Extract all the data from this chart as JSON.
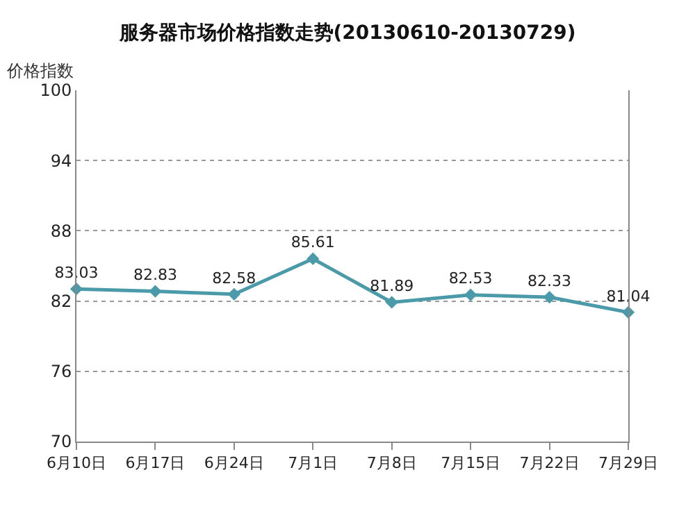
{
  "chart_data": {
    "type": "line",
    "title": "服务器市场价格指数走势(20130610-20130729)",
    "ylabel": "价格指数",
    "categories": [
      "6月10日",
      "6月17日",
      "6月24日",
      "7月1日",
      "7月8日",
      "7月15日",
      "7月22日",
      "7月29日"
    ],
    "series": [
      {
        "color": "#4a9aaa",
        "values": [
          83.03,
          82.83,
          82.58,
          85.61,
          81.89,
          82.53,
          82.33,
          81.04
        ]
      }
    ],
    "ylim": [
      70,
      100
    ],
    "yticks": [
      70,
      76,
      82,
      88,
      94,
      100
    ],
    "grid": "y",
    "marker": "diamond",
    "line_style": "solid",
    "data_labels": true,
    "legend": false
  }
}
